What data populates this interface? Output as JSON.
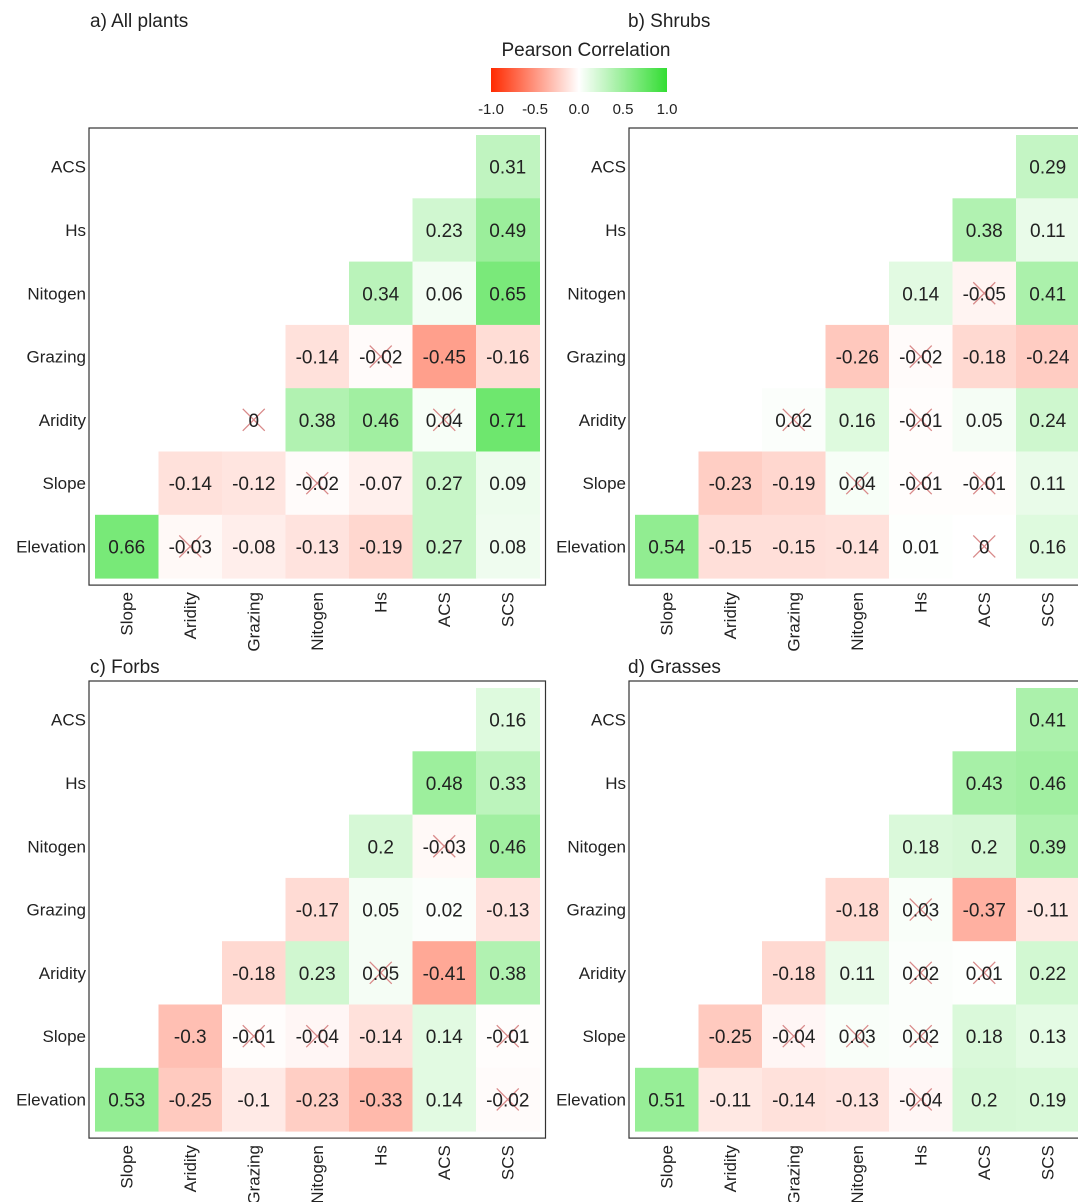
{
  "legend": {
    "title": "Pearson Correlation",
    "ticks": [
      "-1.0",
      "-0.5",
      "0.0",
      "0.5",
      "1.0"
    ],
    "colors": {
      "negative": "#ff2a00",
      "neutral": "#ffffff",
      "positive": "#33dd33"
    }
  },
  "chart_data": [
    {
      "type": "heatmap",
      "title": "a) All plants",
      "rows": [
        "ACS",
        "Hs",
        "Nitogen",
        "Grazing",
        "Aridity",
        "Slope",
        "Elevation"
      ],
      "cols": [
        "Slope",
        "Aridity",
        "Grazing",
        "Nitogen",
        "Hs",
        "ACS",
        "SCS"
      ],
      "cells": [
        {
          "r": 0,
          "c": 6,
          "v": 0.31,
          "label": "0.31",
          "ns": false
        },
        {
          "r": 1,
          "c": 5,
          "v": 0.23,
          "label": "0.23",
          "ns": false
        },
        {
          "r": 1,
          "c": 6,
          "v": 0.49,
          "label": "0.49",
          "ns": false
        },
        {
          "r": 2,
          "c": 4,
          "v": 0.34,
          "label": "0.34",
          "ns": false
        },
        {
          "r": 2,
          "c": 5,
          "v": 0.06,
          "label": "0.06",
          "ns": false
        },
        {
          "r": 2,
          "c": 6,
          "v": 0.65,
          "label": "0.65",
          "ns": false
        },
        {
          "r": 3,
          "c": 3,
          "v": -0.14,
          "label": "-0.14",
          "ns": false
        },
        {
          "r": 3,
          "c": 4,
          "v": -0.02,
          "label": "-0.02",
          "ns": true
        },
        {
          "r": 3,
          "c": 5,
          "v": -0.45,
          "label": "-0.45",
          "ns": false
        },
        {
          "r": 3,
          "c": 6,
          "v": -0.16,
          "label": "-0.16",
          "ns": false
        },
        {
          "r": 4,
          "c": 2,
          "v": 0,
          "label": "0",
          "ns": true
        },
        {
          "r": 4,
          "c": 3,
          "v": 0.38,
          "label": "0.38",
          "ns": false
        },
        {
          "r": 4,
          "c": 4,
          "v": 0.46,
          "label": "0.46",
          "ns": false
        },
        {
          "r": 4,
          "c": 5,
          "v": 0.04,
          "label": "0.04",
          "ns": true
        },
        {
          "r": 4,
          "c": 6,
          "v": 0.71,
          "label": "0.71",
          "ns": false
        },
        {
          "r": 5,
          "c": 1,
          "v": -0.14,
          "label": "-0.14",
          "ns": false
        },
        {
          "r": 5,
          "c": 2,
          "v": -0.12,
          "label": "-0.12",
          "ns": false
        },
        {
          "r": 5,
          "c": 3,
          "v": -0.02,
          "label": "-0.02",
          "ns": true
        },
        {
          "r": 5,
          "c": 4,
          "v": -0.07,
          "label": "-0.07",
          "ns": false
        },
        {
          "r": 5,
          "c": 5,
          "v": 0.27,
          "label": "0.27",
          "ns": false
        },
        {
          "r": 5,
          "c": 6,
          "v": 0.09,
          "label": "0.09",
          "ns": false
        },
        {
          "r": 6,
          "c": 0,
          "v": 0.66,
          "label": "0.66",
          "ns": false
        },
        {
          "r": 6,
          "c": 1,
          "v": -0.03,
          "label": "-0.03",
          "ns": true
        },
        {
          "r": 6,
          "c": 2,
          "v": -0.08,
          "label": "-0.08",
          "ns": false
        },
        {
          "r": 6,
          "c": 3,
          "v": -0.13,
          "label": "-0.13",
          "ns": false
        },
        {
          "r": 6,
          "c": 4,
          "v": -0.19,
          "label": "-0.19",
          "ns": false
        },
        {
          "r": 6,
          "c": 5,
          "v": 0.27,
          "label": "0.27",
          "ns": false
        },
        {
          "r": 6,
          "c": 6,
          "v": 0.08,
          "label": "0.08",
          "ns": false
        }
      ]
    },
    {
      "type": "heatmap",
      "title": "b) Shrubs",
      "rows": [
        "ACS",
        "Hs",
        "Nitogen",
        "Grazing",
        "Aridity",
        "Slope",
        "Elevation"
      ],
      "cols": [
        "Slope",
        "Aridity",
        "Grazing",
        "Nitogen",
        "Hs",
        "ACS",
        "SCS"
      ],
      "cells": [
        {
          "r": 0,
          "c": 6,
          "v": 0.29,
          "label": "0.29",
          "ns": false
        },
        {
          "r": 1,
          "c": 5,
          "v": 0.38,
          "label": "0.38",
          "ns": false
        },
        {
          "r": 1,
          "c": 6,
          "v": 0.11,
          "label": "0.11",
          "ns": false
        },
        {
          "r": 2,
          "c": 4,
          "v": 0.14,
          "label": "0.14",
          "ns": false
        },
        {
          "r": 2,
          "c": 5,
          "v": -0.05,
          "label": "-0.05",
          "ns": true
        },
        {
          "r": 2,
          "c": 6,
          "v": 0.41,
          "label": "0.41",
          "ns": false
        },
        {
          "r": 3,
          "c": 3,
          "v": -0.26,
          "label": "-0.26",
          "ns": false
        },
        {
          "r": 3,
          "c": 4,
          "v": -0.02,
          "label": "-0.02",
          "ns": true
        },
        {
          "r": 3,
          "c": 5,
          "v": -0.18,
          "label": "-0.18",
          "ns": false
        },
        {
          "r": 3,
          "c": 6,
          "v": -0.24,
          "label": "-0.24",
          "ns": false
        },
        {
          "r": 4,
          "c": 2,
          "v": 0.02,
          "label": "0.02",
          "ns": true
        },
        {
          "r": 4,
          "c": 3,
          "v": 0.16,
          "label": "0.16",
          "ns": false
        },
        {
          "r": 4,
          "c": 4,
          "v": -0.01,
          "label": "-0.01",
          "ns": true
        },
        {
          "r": 4,
          "c": 5,
          "v": 0.05,
          "label": "0.05",
          "ns": false
        },
        {
          "r": 4,
          "c": 6,
          "v": 0.24,
          "label": "0.24",
          "ns": false
        },
        {
          "r": 5,
          "c": 1,
          "v": -0.23,
          "label": "-0.23",
          "ns": false
        },
        {
          "r": 5,
          "c": 2,
          "v": -0.19,
          "label": "-0.19",
          "ns": false
        },
        {
          "r": 5,
          "c": 3,
          "v": 0.04,
          "label": "0.04",
          "ns": true
        },
        {
          "r": 5,
          "c": 4,
          "v": -0.01,
          "label": "-0.01",
          "ns": true
        },
        {
          "r": 5,
          "c": 5,
          "v": -0.01,
          "label": "-0.01",
          "ns": true
        },
        {
          "r": 5,
          "c": 6,
          "v": 0.11,
          "label": "0.11",
          "ns": false
        },
        {
          "r": 6,
          "c": 0,
          "v": 0.54,
          "label": "0.54",
          "ns": false
        },
        {
          "r": 6,
          "c": 1,
          "v": -0.15,
          "label": "-0.15",
          "ns": false
        },
        {
          "r": 6,
          "c": 2,
          "v": -0.15,
          "label": "-0.15",
          "ns": false
        },
        {
          "r": 6,
          "c": 3,
          "v": -0.14,
          "label": "-0.14",
          "ns": false
        },
        {
          "r": 6,
          "c": 4,
          "v": 0.01,
          "label": "0.01",
          "ns": false
        },
        {
          "r": 6,
          "c": 5,
          "v": 0,
          "label": "0",
          "ns": true
        },
        {
          "r": 6,
          "c": 6,
          "v": 0.16,
          "label": "0.16",
          "ns": false
        }
      ]
    },
    {
      "type": "heatmap",
      "title": "c) Forbs",
      "rows": [
        "ACS",
        "Hs",
        "Nitogen",
        "Grazing",
        "Aridity",
        "Slope",
        "Elevation"
      ],
      "cols": [
        "Slope",
        "Aridity",
        "Grazing",
        "Nitogen",
        "Hs",
        "ACS",
        "SCS"
      ],
      "cells": [
        {
          "r": 0,
          "c": 6,
          "v": 0.16,
          "label": "0.16",
          "ns": false
        },
        {
          "r": 1,
          "c": 5,
          "v": 0.48,
          "label": "0.48",
          "ns": false
        },
        {
          "r": 1,
          "c": 6,
          "v": 0.33,
          "label": "0.33",
          "ns": false
        },
        {
          "r": 2,
          "c": 4,
          "v": 0.2,
          "label": "0.2",
          "ns": false
        },
        {
          "r": 2,
          "c": 5,
          "v": -0.03,
          "label": "-0.03",
          "ns": true
        },
        {
          "r": 2,
          "c": 6,
          "v": 0.46,
          "label": "0.46",
          "ns": false
        },
        {
          "r": 3,
          "c": 3,
          "v": -0.17,
          "label": "-0.17",
          "ns": false
        },
        {
          "r": 3,
          "c": 4,
          "v": 0.05,
          "label": "0.05",
          "ns": false
        },
        {
          "r": 3,
          "c": 5,
          "v": 0.02,
          "label": "0.02",
          "ns": false
        },
        {
          "r": 3,
          "c": 6,
          "v": -0.13,
          "label": "-0.13",
          "ns": false
        },
        {
          "r": 4,
          "c": 2,
          "v": -0.18,
          "label": "-0.18",
          "ns": false
        },
        {
          "r": 4,
          "c": 3,
          "v": 0.23,
          "label": "0.23",
          "ns": false
        },
        {
          "r": 4,
          "c": 4,
          "v": 0.05,
          "label": "0.05",
          "ns": true
        },
        {
          "r": 4,
          "c": 5,
          "v": -0.41,
          "label": "-0.41",
          "ns": false
        },
        {
          "r": 4,
          "c": 6,
          "v": 0.38,
          "label": "0.38",
          "ns": false
        },
        {
          "r": 5,
          "c": 1,
          "v": -0.3,
          "label": "-0.3",
          "ns": false
        },
        {
          "r": 5,
          "c": 2,
          "v": -0.01,
          "label": "-0.01",
          "ns": true
        },
        {
          "r": 5,
          "c": 3,
          "v": -0.04,
          "label": "-0.04",
          "ns": true
        },
        {
          "r": 5,
          "c": 4,
          "v": -0.14,
          "label": "-0.14",
          "ns": false
        },
        {
          "r": 5,
          "c": 5,
          "v": 0.14,
          "label": "0.14",
          "ns": false
        },
        {
          "r": 5,
          "c": 6,
          "v": -0.01,
          "label": "-0.01",
          "ns": true
        },
        {
          "r": 6,
          "c": 0,
          "v": 0.53,
          "label": "0.53",
          "ns": false
        },
        {
          "r": 6,
          "c": 1,
          "v": -0.25,
          "label": "-0.25",
          "ns": false
        },
        {
          "r": 6,
          "c": 2,
          "v": -0.1,
          "label": "-0.1",
          "ns": false
        },
        {
          "r": 6,
          "c": 3,
          "v": -0.23,
          "label": "-0.23",
          "ns": false
        },
        {
          "r": 6,
          "c": 4,
          "v": -0.33,
          "label": "-0.33",
          "ns": false
        },
        {
          "r": 6,
          "c": 5,
          "v": 0.14,
          "label": "0.14",
          "ns": false
        },
        {
          "r": 6,
          "c": 6,
          "v": -0.02,
          "label": "-0.02",
          "ns": true
        }
      ]
    },
    {
      "type": "heatmap",
      "title": "d) Grasses",
      "rows": [
        "ACS",
        "Hs",
        "Nitogen",
        "Grazing",
        "Aridity",
        "Slope",
        "Elevation"
      ],
      "cols": [
        "Slope",
        "Aridity",
        "Grazing",
        "Nitogen",
        "Hs",
        "ACS",
        "SCS"
      ],
      "cells": [
        {
          "r": 0,
          "c": 6,
          "v": 0.41,
          "label": "0.41",
          "ns": false
        },
        {
          "r": 1,
          "c": 5,
          "v": 0.43,
          "label": "0.43",
          "ns": false
        },
        {
          "r": 1,
          "c": 6,
          "v": 0.46,
          "label": "0.46",
          "ns": false
        },
        {
          "r": 2,
          "c": 4,
          "v": 0.18,
          "label": "0.18",
          "ns": false
        },
        {
          "r": 2,
          "c": 5,
          "v": 0.2,
          "label": "0.2",
          "ns": false
        },
        {
          "r": 2,
          "c": 6,
          "v": 0.39,
          "label": "0.39",
          "ns": false
        },
        {
          "r": 3,
          "c": 3,
          "v": -0.18,
          "label": "-0.18",
          "ns": false
        },
        {
          "r": 3,
          "c": 4,
          "v": 0.03,
          "label": "0.03",
          "ns": true
        },
        {
          "r": 3,
          "c": 5,
          "v": -0.37,
          "label": "-0.37",
          "ns": false
        },
        {
          "r": 3,
          "c": 6,
          "v": -0.11,
          "label": "-0.11",
          "ns": false
        },
        {
          "r": 4,
          "c": 2,
          "v": -0.18,
          "label": "-0.18",
          "ns": false
        },
        {
          "r": 4,
          "c": 3,
          "v": 0.11,
          "label": "0.11",
          "ns": false
        },
        {
          "r": 4,
          "c": 4,
          "v": 0.02,
          "label": "0.02",
          "ns": true
        },
        {
          "r": 4,
          "c": 5,
          "v": 0.01,
          "label": "0.01",
          "ns": true
        },
        {
          "r": 4,
          "c": 6,
          "v": 0.22,
          "label": "0.22",
          "ns": false
        },
        {
          "r": 5,
          "c": 1,
          "v": -0.25,
          "label": "-0.25",
          "ns": false
        },
        {
          "r": 5,
          "c": 2,
          "v": -0.04,
          "label": "-0.04",
          "ns": true
        },
        {
          "r": 5,
          "c": 3,
          "v": 0.03,
          "label": "0.03",
          "ns": true
        },
        {
          "r": 5,
          "c": 4,
          "v": 0.02,
          "label": "0.02",
          "ns": true
        },
        {
          "r": 5,
          "c": 5,
          "v": 0.18,
          "label": "0.18",
          "ns": false
        },
        {
          "r": 5,
          "c": 6,
          "v": 0.13,
          "label": "0.13",
          "ns": false
        },
        {
          "r": 6,
          "c": 0,
          "v": 0.51,
          "label": "0.51",
          "ns": false
        },
        {
          "r": 6,
          "c": 1,
          "v": -0.11,
          "label": "-0.11",
          "ns": false
        },
        {
          "r": 6,
          "c": 2,
          "v": -0.14,
          "label": "-0.14",
          "ns": false
        },
        {
          "r": 6,
          "c": 3,
          "v": -0.13,
          "label": "-0.13",
          "ns": false
        },
        {
          "r": 6,
          "c": 4,
          "v": -0.04,
          "label": "-0.04",
          "ns": true
        },
        {
          "r": 6,
          "c": 5,
          "v": 0.2,
          "label": "0.2",
          "ns": false
        },
        {
          "r": 6,
          "c": 6,
          "v": 0.19,
          "label": "0.19",
          "ns": false
        }
      ]
    }
  ]
}
